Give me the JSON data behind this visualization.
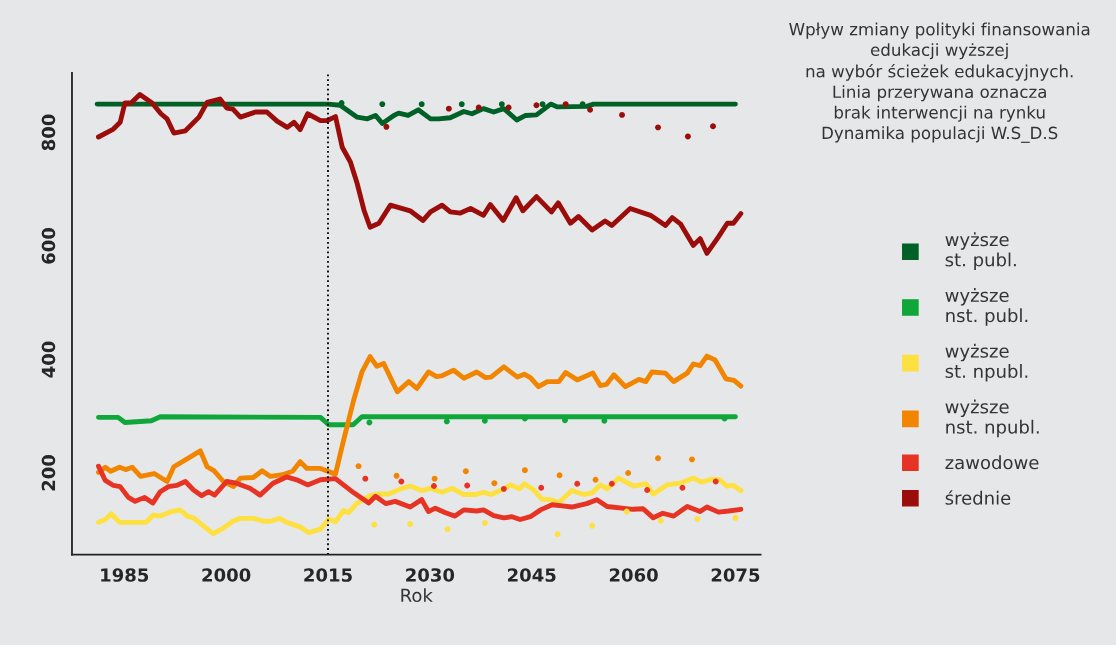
{
  "chart_data": {
    "type": "line",
    "title": "Wpływ zmiany polityki finansowania\nedukacji wyższej\nna wybór ścieżek edukacyjnych.\nLinia przerywana oznacza\nbrak interwencji na rynku\nDynamika populacji W.S_D.S",
    "xlabel": "Rok",
    "xlim": [
      1977.3,
      2078.7
    ],
    "ylim": [
      56,
      905
    ],
    "xticks": [
      1985,
      2000,
      2015,
      2030,
      2045,
      2060,
      2075
    ],
    "yticks": [
      200,
      400,
      600,
      800
    ],
    "grid": false,
    "legend": "right",
    "line_style": "solid",
    "marker": "none",
    "ref_lines": [
      {
        "axis": "x",
        "value": 2015,
        "color": "#000000",
        "line_style": "dotted"
      }
    ],
    "series": [
      {
        "name": "wyższe\nst. publ.",
        "color": "#006127",
        "x": [
          1981,
          2015,
          2016.8,
          2019.3,
          2020.8,
          2022,
          2023,
          2024.7,
          2025.4,
          2026.8,
          2028.3,
          2030.1,
          2031.3,
          2033,
          2035,
          2036.2,
          2037.9,
          2039.4,
          2040.9,
          2042.8,
          2044.1,
          2045.7,
          2047.8,
          2048.8,
          2053.1,
          2054.1,
          2075
        ],
        "values": [
          850,
          850,
          848,
          827,
          824,
          830,
          816,
          830,
          834,
          830,
          840,
          824,
          824,
          826,
          837,
          833,
          842,
          836,
          842,
          822,
          830,
          831,
          850,
          845,
          846,
          850,
          850
        ]
      },
      {
        "name": "wyższe\nnst. publ.",
        "color": "#0fa63a",
        "x": [
          1981.2,
          1984.1,
          1985.1,
          1989,
          1990.3,
          2013.9,
          2015.1,
          2018.7,
          2020,
          2075
        ],
        "values": [
          298,
          298,
          289,
          292,
          299,
          298,
          285,
          285,
          299,
          299
        ]
      },
      {
        "name": "wyższe\nst. npubl.",
        "color": "#fee040",
        "x": [
          1981.2,
          1982.2,
          1983.1,
          1984.3,
          1986.2,
          1988.2,
          1989.3,
          1990.3,
          1991.7,
          1993.2,
          1994.3,
          1995.3,
          1996.5,
          1998.1,
          1999.6,
          2001,
          2002.1,
          2004,
          2005.5,
          2006.5,
          2007.9,
          2008.9,
          2010.9,
          2012.1,
          2013.9,
          2015.1,
          2016.1,
          2017.3,
          2018,
          2019.3,
          2021.2,
          2022.5,
          2023.9,
          2025.7,
          2027.1,
          2028.8,
          2030.1,
          2031.8,
          2033.3,
          2035,
          2036.7,
          2037.9,
          2039,
          2040.7,
          2041.9,
          2043.2,
          2043.9,
          2045.2,
          2046.5,
          2047.7,
          2049,
          2050.9,
          2052.7,
          2053.9,
          2055.1,
          2056.1,
          2057.8,
          2060,
          2061.8,
          2062.9,
          2064.9,
          2066.9,
          2068.8,
          2070,
          2071.5,
          2072.7,
          2073.7,
          2074.7,
          2075.8
        ],
        "values": [
          113,
          118,
          128,
          113,
          113,
          113,
          126,
          124,
          131,
          135,
          124,
          120,
          108,
          93,
          103,
          115,
          120,
          120,
          115,
          115,
          120,
          113,
          105,
          95,
          101,
          119,
          114,
          134,
          130,
          147,
          160,
          163,
          163,
          172,
          177,
          169,
          173,
          166,
          173,
          162,
          162,
          166,
          162,
          171,
          179,
          172,
          181,
          171,
          154,
          153,
          148,
          169,
          162,
          165,
          179,
          172,
          191,
          177,
          181,
          163,
          179,
          182,
          191,
          184,
          189,
          188,
          177,
          178,
          169
        ]
      },
      {
        "name": "wyższe\nnst. npubl.",
        "color": "#f28500",
        "x": [
          1981.2,
          1982.2,
          1983,
          1984.3,
          1985.2,
          1986.2,
          1987.4,
          1989.4,
          1991.3,
          1992.3,
          1994,
          1996.2,
          1997.2,
          1998.2,
          1999.6,
          2001.1,
          2002.1,
          2004,
          2005.3,
          2006.5,
          2008.3,
          2009.8,
          2010.9,
          2011.9,
          2013.9,
          2016.1,
          2017.3,
          2018.8,
          2020,
          2021.2,
          2022.2,
          2023.2,
          2025.2,
          2026.9,
          2028.1,
          2029.8,
          2031,
          2031.7,
          2033.5,
          2035,
          2036.9,
          2038.2,
          2039,
          2040.9,
          2042.9,
          2043.9,
          2044.8,
          2046,
          2047.3,
          2049,
          2050,
          2051.7,
          2054,
          2055.1,
          2056,
          2057.1,
          2058.8,
          2060.8,
          2061.8,
          2062.7,
          2064.7,
          2065.9,
          2067.9,
          2068.8,
          2069.8,
          2070.8,
          2072,
          2073.6,
          2074.8,
          2075.8
        ],
        "values": [
          201,
          210,
          203,
          210,
          206,
          210,
          194,
          199,
          185,
          211,
          223,
          239,
          211,
          204,
          185,
          176,
          191,
          192,
          204,
          194,
          197,
          203,
          220,
          208,
          208,
          198,
          258,
          329,
          378,
          405,
          388,
          393,
          343,
          361,
          349,
          378,
          370,
          371,
          381,
          367,
          378,
          368,
          369,
          387,
          369,
          374,
          368,
          352,
          361,
          361,
          377,
          364,
          376,
          354,
          356,
          373,
          352,
          365,
          361,
          378,
          376,
          361,
          376,
          392,
          389,
          406,
          399,
          366,
          363,
          353
        ]
      },
      {
        "name": "zawodowe",
        "color": "#e63323",
        "x": [
          1981.2,
          1982.2,
          1983.4,
          1984.4,
          1985.6,
          1986.6,
          1988,
          1989.2,
          1990.3,
          1991.5,
          1992.7,
          1994,
          1995.2,
          1996.4,
          1997.4,
          1998.3,
          2000.1,
          2001.5,
          2003.5,
          2005,
          2006.9,
          2008.9,
          2010.4,
          2012,
          2013.9,
          2016.1,
          2018.8,
          2021,
          2022,
          2023.5,
          2024.9,
          2027.1,
          2028.8,
          2029.8,
          2030.8,
          2032.3,
          2033.7,
          2035,
          2036.9,
          2037.9,
          2039.4,
          2040.9,
          2042.1,
          2043.3,
          2044.8,
          2046.3,
          2048,
          2049.5,
          2050.9,
          2053.1,
          2054.6,
          2056.1,
          2058.3,
          2059.9,
          2061.4,
          2062.9,
          2064.3,
          2065.9,
          2067.9,
          2069.8,
          2070.8,
          2072.5,
          2074,
          2075.8
        ],
        "values": [
          212,
          187,
          178,
          176,
          157,
          150,
          157,
          147,
          167,
          176,
          178,
          185,
          170,
          160,
          167,
          161,
          185,
          182,
          173,
          161,
          182,
          193,
          188,
          179,
          188,
          190,
          165,
          147,
          159,
          146,
          150,
          140,
          153,
          132,
          138,
          130,
          124,
          135,
          133,
          135,
          125,
          121,
          123,
          118,
          123,
          135,
          144,
          142,
          140,
          146,
          153,
          141,
          138,
          136,
          137,
          121,
          129,
          124,
          141,
          132,
          140,
          131,
          133,
          136
        ]
      },
      {
        "name": "średnie",
        "color": "#9b0d0a",
        "x": [
          1981.2,
          1983.4,
          1984.4,
          1985.1,
          1986,
          1987.3,
          1989.1,
          1990.4,
          1991.3,
          1992.3,
          1994,
          1996,
          1997.2,
          1999.1,
          2000.1,
          2001,
          2002.1,
          2004.3,
          2006,
          2007.5,
          2009,
          2010,
          2010.9,
          2012,
          2013.9,
          2014.9,
          2016.1,
          2017.1,
          2018.3,
          2019.3,
          2020.3,
          2021.2,
          2022.5,
          2024.2,
          2027.1,
          2029,
          2030.1,
          2031.8,
          2033,
          2034.5,
          2036,
          2037.9,
          2038.9,
          2040.8,
          2042.7,
          2043.7,
          2045.7,
          2047.9,
          2048.9,
          2050.7,
          2051.9,
          2053.9,
          2055.8,
          2056.8,
          2059.5,
          2062.5,
          2064.7,
          2065.7,
          2066.9,
          2068.8,
          2069.8,
          2070.8,
          2072.5,
          2073.8,
          2074.7,
          2075.8
        ],
        "values": [
          792,
          806,
          818,
          852,
          852,
          867,
          852,
          833,
          824,
          799,
          803,
          827,
          853,
          859,
          843,
          841,
          827,
          836,
          836,
          820,
          809,
          818,
          805,
          833,
          821,
          821,
          828,
          774,
          748,
          710,
          663,
          633,
          640,
          672,
          662,
          645,
          660,
          672,
          660,
          658,
          666,
          654,
          673,
          645,
          685,
          662,
          687,
          660,
          676,
          640,
          652,
          628,
          644,
          636,
          666,
          654,
          636,
          650,
          639,
          601,
          613,
          587,
          616,
          640,
          640,
          657
        ]
      },
      {
        "type": "scatter",
        "marker": "circle",
        "color": "#006127",
        "x": [
          2017,
          2023,
          2028.8,
          2034.7,
          2040.6,
          2046.6,
          2052.5
        ],
        "values": [
          852,
          850,
          850,
          850,
          850,
          850,
          850
        ]
      },
      {
        "type": "scatter",
        "marker": "circle",
        "color": "#0fa63a",
        "x": [
          2021.1,
          2032.5,
          2038.1,
          2044,
          2049.9,
          2055.7,
          2073.4
        ],
        "values": [
          289,
          291,
          292,
          296,
          293,
          292,
          296
        ]
      },
      {
        "type": "scatter",
        "marker": "circle",
        "color": "#fee040",
        "x": [
          2021.8,
          2027.1,
          2032.6,
          2038.1,
          2048.8,
          2053.9,
          2059,
          2064,
          2069.4,
          2075
        ],
        "values": [
          109,
          110,
          101,
          112,
          92,
          107,
          132,
          116,
          119,
          121
        ]
      },
      {
        "type": "scatter",
        "marker": "circle",
        "color": "#f28500",
        "x": [
          2019.5,
          2025.1,
          2030.7,
          2035.3,
          2039.5,
          2044,
          2049.1,
          2054.4,
          2059.2,
          2063.6,
          2068.6
        ],
        "values": [
          212,
          195,
          190,
          203,
          182,
          205,
          196,
          188,
          200,
          226,
          224
        ]
      },
      {
        "type": "scatter",
        "marker": "circle",
        "color": "#e63323",
        "x": [
          2020.5,
          2025.8,
          2030.6,
          2035.5,
          2040.9,
          2046.4,
          2051.7,
          2056.8,
          2062,
          2067.2,
          2072.1
        ],
        "values": [
          190,
          185,
          177,
          178,
          172,
          174,
          181,
          181,
          170,
          174,
          185
        ]
      },
      {
        "type": "scatter",
        "marker": "circle",
        "color": "#9b0d0a",
        "x": [
          2023.6,
          2032.8,
          2037.2,
          2041.6,
          2045.7,
          2050,
          2053.6,
          2058.3,
          2063.6,
          2068,
          2071.7
        ],
        "values": [
          810,
          842,
          844,
          844,
          848,
          850,
          840,
          831,
          809,
          793,
          811
        ]
      }
    ]
  }
}
